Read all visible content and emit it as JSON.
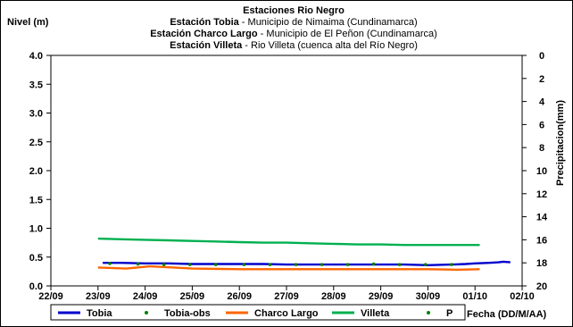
{
  "chart_data": {
    "type": "line",
    "title_lines": [
      {
        "bold": "Estaciones Rio Negro",
        "normal": ""
      },
      {
        "bold": "Estación Tobia",
        "normal": " - Municipio de Nimaima (Cundinamarca)"
      },
      {
        "bold": "Estación Charco Largo",
        "normal": " - Municipio de El Peñon (Cundinamarca)"
      },
      {
        "bold": "Estación Villeta",
        "normal": " - Rio Villeta (cuenca alta del Río Negro)"
      }
    ],
    "ylabel": "Nivel (m)",
    "y2label": "Precipitacion(mm)",
    "xlabel": "Fecha (DD/M/AA)",
    "x_ticks": [
      "22/09",
      "23/09",
      "24/09",
      "25/09",
      "26/09",
      "27/09",
      "28/09",
      "29/09",
      "30/09",
      "01/10",
      "02/10"
    ],
    "x_range_days": [
      0,
      10
    ],
    "ylim": [
      0,
      4.0
    ],
    "y_ticks": [
      "0.0",
      "0.5",
      "1.0",
      "1.5",
      "2.0",
      "2.5",
      "3.0",
      "3.5",
      "4.0"
    ],
    "y2lim": [
      20,
      0
    ],
    "y2_ticks": [
      "0",
      "2",
      "4",
      "6",
      "8",
      "10",
      "12",
      "14",
      "16",
      "18",
      "20"
    ],
    "legend_position": "bottom",
    "series": [
      {
        "name": "Tobia",
        "style": "line",
        "color": "#0000cc",
        "points": [
          [
            1.1,
            0.4
          ],
          [
            1.5,
            0.4
          ],
          [
            2.0,
            0.39
          ],
          [
            2.5,
            0.39
          ],
          [
            3.0,
            0.38
          ],
          [
            3.5,
            0.38
          ],
          [
            4.0,
            0.38
          ],
          [
            4.5,
            0.38
          ],
          [
            5.0,
            0.37
          ],
          [
            5.5,
            0.37
          ],
          [
            6.0,
            0.37
          ],
          [
            6.5,
            0.37
          ],
          [
            7.0,
            0.37
          ],
          [
            7.5,
            0.37
          ],
          [
            8.0,
            0.36
          ],
          [
            8.5,
            0.37
          ],
          [
            8.8,
            0.38
          ],
          [
            9.0,
            0.39
          ],
          [
            9.3,
            0.4
          ],
          [
            9.5,
            0.41
          ],
          [
            9.6,
            0.42
          ],
          [
            9.75,
            0.41
          ]
        ]
      },
      {
        "name": "Tobia-obs",
        "style": "points",
        "color": "#008000",
        "points": [
          [
            1.25,
            0.39
          ],
          [
            1.85,
            0.38
          ],
          [
            2.4,
            0.37
          ],
          [
            2.95,
            0.37
          ],
          [
            3.5,
            0.37
          ],
          [
            4.1,
            0.37
          ],
          [
            4.65,
            0.37
          ],
          [
            5.2,
            0.37
          ],
          [
            5.75,
            0.37
          ],
          [
            6.3,
            0.37
          ],
          [
            6.85,
            0.38
          ],
          [
            7.4,
            0.37
          ],
          [
            7.95,
            0.37
          ],
          [
            8.5,
            0.37
          ]
        ]
      },
      {
        "name": "Charco Largo",
        "style": "line",
        "color": "#ff6600",
        "points": [
          [
            1.0,
            0.32
          ],
          [
            1.6,
            0.3
          ],
          [
            2.1,
            0.34
          ],
          [
            2.6,
            0.32
          ],
          [
            3.0,
            0.3
          ],
          [
            4.0,
            0.29
          ],
          [
            5.0,
            0.29
          ],
          [
            6.0,
            0.29
          ],
          [
            7.0,
            0.29
          ],
          [
            8.0,
            0.29
          ],
          [
            8.6,
            0.28
          ],
          [
            9.1,
            0.29
          ]
        ]
      },
      {
        "name": "Villeta",
        "style": "line",
        "color": "#00b050",
        "points": [
          [
            1.0,
            0.82
          ],
          [
            1.5,
            0.81
          ],
          [
            2.0,
            0.8
          ],
          [
            2.5,
            0.79
          ],
          [
            3.0,
            0.78
          ],
          [
            3.5,
            0.77
          ],
          [
            4.0,
            0.76
          ],
          [
            4.5,
            0.75
          ],
          [
            5.0,
            0.75
          ],
          [
            5.5,
            0.74
          ],
          [
            6.0,
            0.73
          ],
          [
            6.5,
            0.72
          ],
          [
            7.0,
            0.72
          ],
          [
            7.5,
            0.71
          ],
          [
            8.0,
            0.71
          ],
          [
            8.5,
            0.71
          ],
          [
            9.1,
            0.71
          ]
        ]
      },
      {
        "name": "P",
        "style": "points",
        "color": "#008000",
        "points": []
      }
    ]
  }
}
